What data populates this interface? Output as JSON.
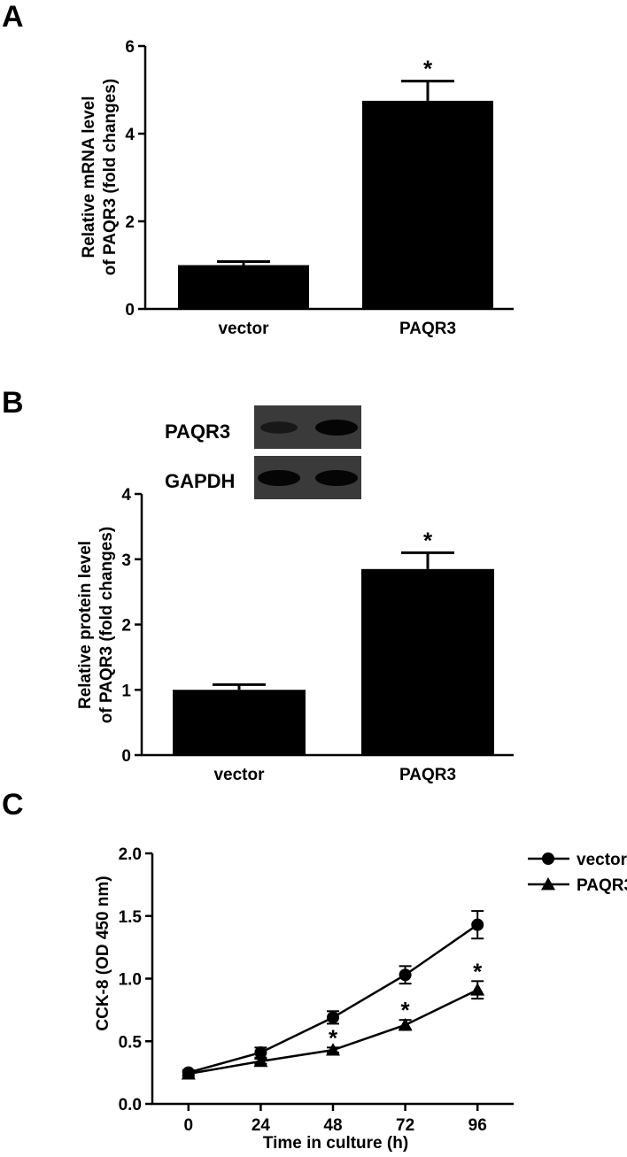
{
  "panels": {
    "A": {
      "letter": "A",
      "chart_data": {
        "type": "bar",
        "categories": [
          "vector",
          "PAQR3"
        ],
        "values": [
          1.0,
          4.75
        ],
        "errors": [
          0.08,
          0.45
        ],
        "significance": [
          "",
          "*"
        ],
        "ylabel_lines": [
          "Relative mRNA level",
          "of PAQR3 (fold changes)"
        ],
        "ylim": [
          0,
          6
        ],
        "yticks": [
          0,
          2,
          4,
          6
        ],
        "bar_color": "#000000"
      }
    },
    "B": {
      "letter": "B",
      "blot": {
        "rows": [
          "PAQR3",
          "GAPDH"
        ],
        "band_intensity": [
          [
            0.45,
            1.0
          ],
          [
            1.0,
            1.0
          ]
        ]
      },
      "chart_data": {
        "type": "bar",
        "categories": [
          "vector",
          "PAQR3"
        ],
        "values": [
          1.0,
          2.85
        ],
        "errors": [
          0.08,
          0.25
        ],
        "significance": [
          "",
          "*"
        ],
        "ylabel_lines": [
          "Relative protein level",
          "of PAQR3 (fold changes)"
        ],
        "ylim": [
          0,
          4
        ],
        "yticks": [
          0,
          1,
          2,
          3,
          4
        ],
        "bar_color": "#000000"
      }
    },
    "C": {
      "letter": "C",
      "chart_data": {
        "type": "line",
        "x": [
          0,
          24,
          48,
          72,
          96
        ],
        "xlabel": "Time in culture (h)",
        "ylabel": "CCK-8 (OD 450 nm)",
        "xlim": [
          -12,
          108
        ],
        "xticks": [
          0,
          24,
          48,
          72,
          96
        ],
        "ylim": [
          0,
          2.0
        ],
        "yticks": [
          "0.0",
          "0.5",
          "1.0",
          "1.5",
          "2.0"
        ],
        "legend_position": "top-right",
        "series": [
          {
            "name": "vector",
            "marker": "circle",
            "values": [
              0.25,
              0.41,
              0.69,
              1.03,
              1.43
            ],
            "errors": [
              0.02,
              0.04,
              0.05,
              0.07,
              0.11
            ],
            "significance": [
              "",
              "",
              "",
              "",
              ""
            ]
          },
          {
            "name": "PAQR3",
            "marker": "triangle",
            "values": [
              0.24,
              0.34,
              0.43,
              0.63,
              0.91
            ],
            "errors": [
              0.02,
              0.02,
              0.02,
              0.04,
              0.07
            ],
            "significance": [
              "",
              "",
              "*",
              "*",
              "*"
            ]
          }
        ]
      }
    }
  }
}
